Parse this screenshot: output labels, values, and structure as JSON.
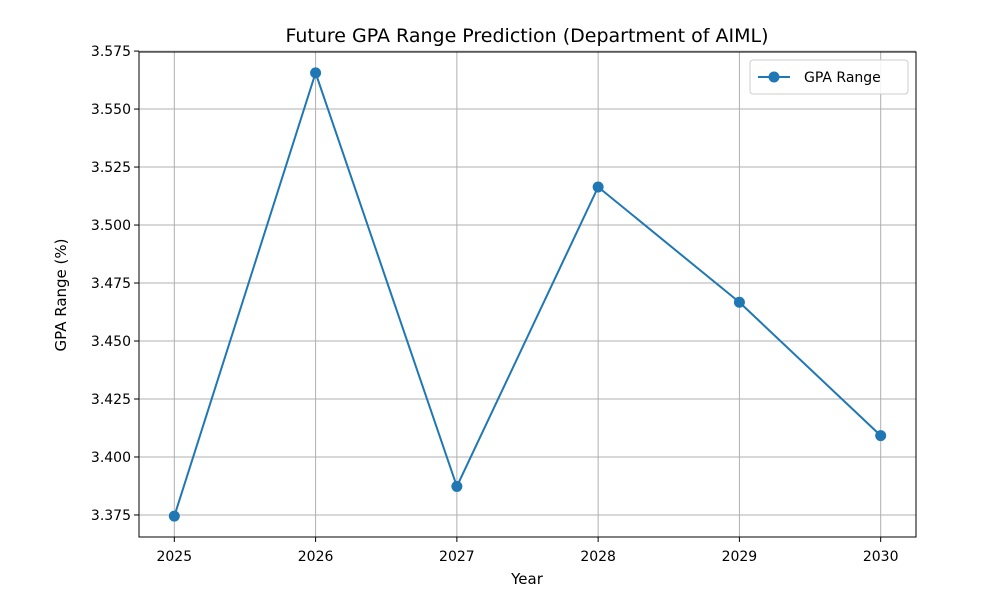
{
  "chart_data": {
    "type": "line",
    "title": "Future GPA Range Prediction (Department of AIML)",
    "xlabel": "Year",
    "ylabel": "GPA Range (%)",
    "x": [
      2025,
      2026,
      2027,
      2028,
      2029,
      2030
    ],
    "x_tick_labels": [
      "2025",
      "2026",
      "2027",
      "2028",
      "2029",
      "2030"
    ],
    "y_ticks": [
      3.375,
      3.4,
      3.425,
      3.45,
      3.475,
      3.5,
      3.525,
      3.55,
      3.575
    ],
    "y_tick_labels": [
      "3.375",
      "3.400",
      "3.425",
      "3.450",
      "3.475",
      "3.500",
      "3.525",
      "3.550",
      "3.575"
    ],
    "xlim": [
      2024.75,
      2030.25
    ],
    "ylim": [
      3.3655,
      3.5746
    ],
    "grid": true,
    "legend_position": "top-right",
    "series": [
      {
        "name": "GPA Range",
        "color": "#1f77b4",
        "marker": "circle",
        "values": [
          3.3745,
          3.5656,
          3.3873,
          3.5164,
          3.4667,
          3.4092
        ]
      }
    ]
  }
}
